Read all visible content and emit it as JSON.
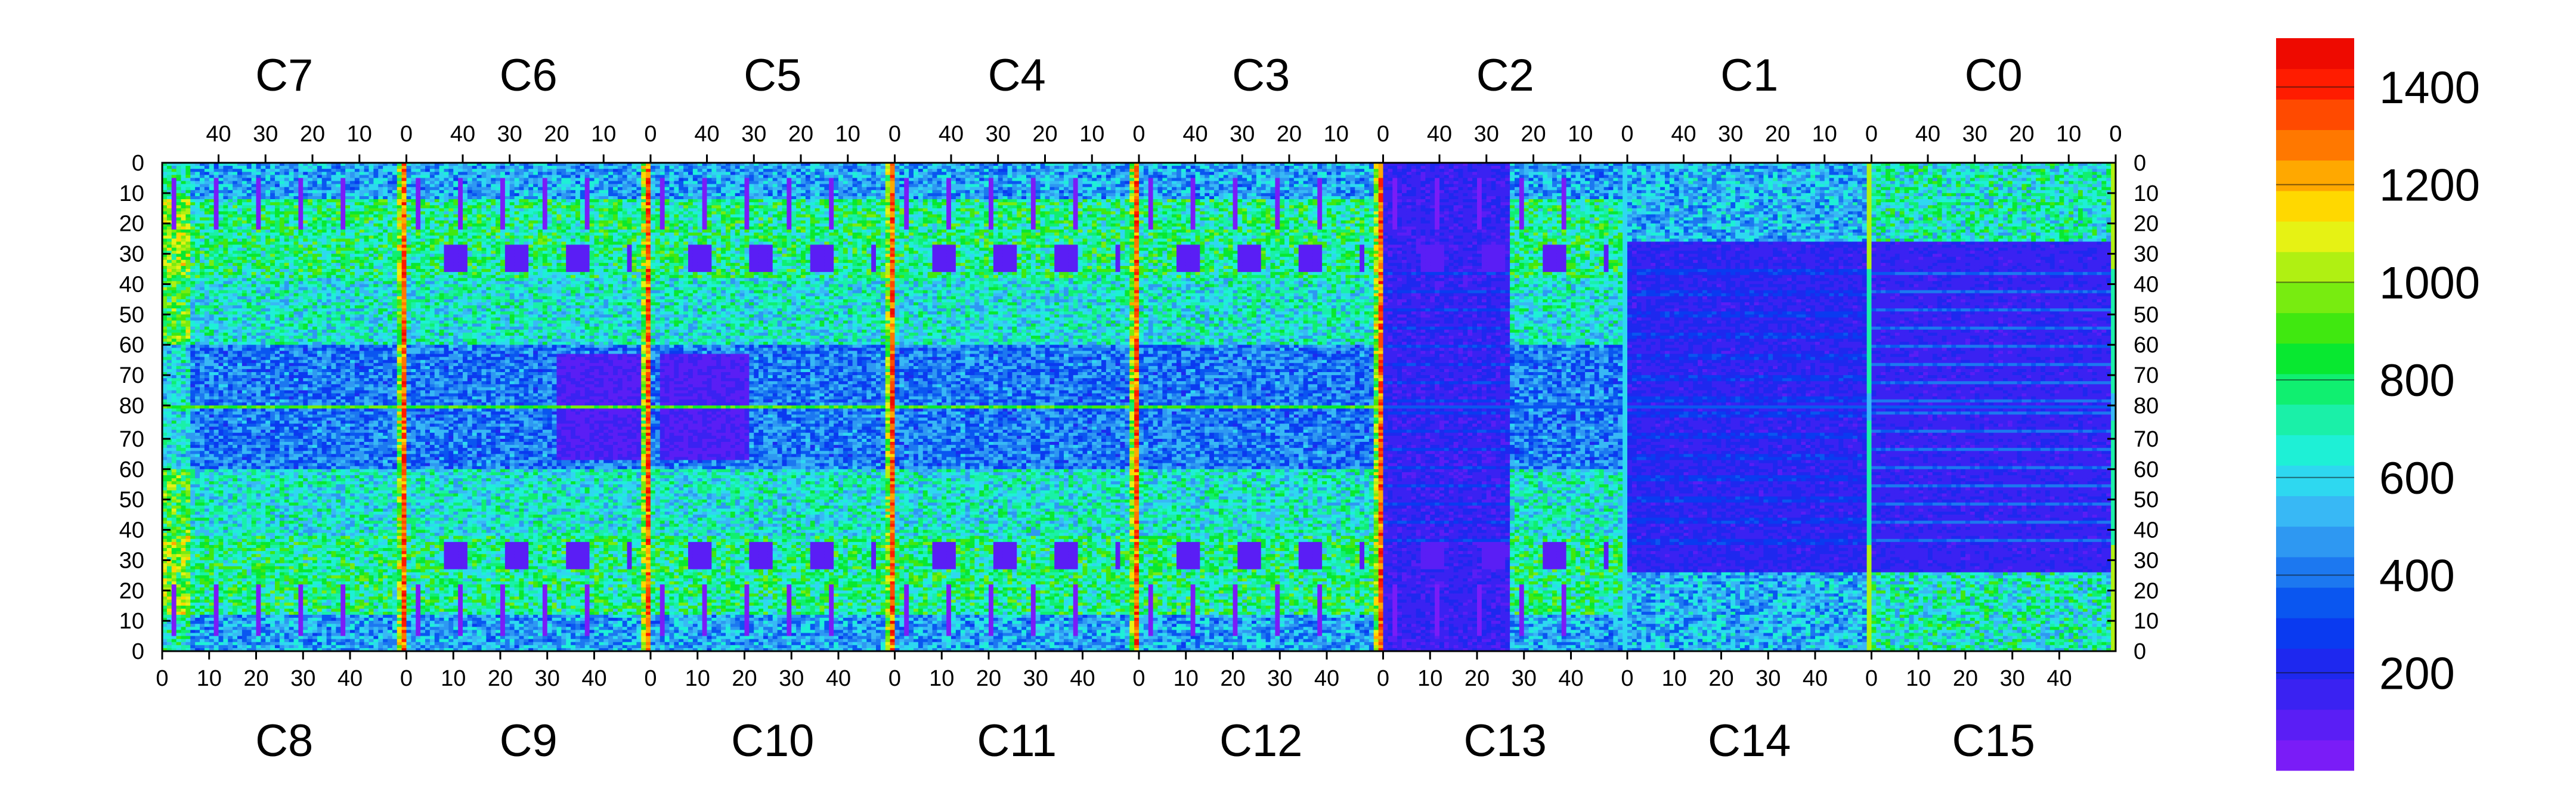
{
  "chart_data": {
    "type": "heatmap",
    "title": "",
    "xlabel": "",
    "ylabel": "",
    "grid": false,
    "chips_top": [
      "C7",
      "C6",
      "C5",
      "C4",
      "C3",
      "C2",
      "C1",
      "C0"
    ],
    "chips_bottom": [
      "C8",
      "C9",
      "C10",
      "C11",
      "C12",
      "C13",
      "C14",
      "C15"
    ],
    "x_ticks_top": [
      "40",
      "30",
      "20",
      "10",
      "0"
    ],
    "x_ticks_bottom": [
      "0",
      "10",
      "20",
      "30",
      "40"
    ],
    "y_ticks_top_half": [
      "0",
      "10",
      "20",
      "30",
      "40",
      "50",
      "60",
      "70",
      "80"
    ],
    "y_ticks_bottom_half": [
      "70",
      "60",
      "50",
      "40",
      "30",
      "20",
      "10",
      "0"
    ],
    "columns_per_chip": 52,
    "rows_per_half": 80,
    "z_range": [
      0,
      1500
    ],
    "colorbar_ticks": [
      "200",
      "400",
      "600",
      "800",
      "1000",
      "1200",
      "1400"
    ],
    "colorbar_tick_values": [
      200,
      400,
      600,
      800,
      1000,
      1200,
      1400
    ],
    "palette": [
      "#7a1cf7",
      "#5a1ef5",
      "#3a22f2",
      "#1e28ef",
      "#0a3af0",
      "#0a56f0",
      "#1c78f0",
      "#2e98f2",
      "#38b8f5",
      "#2ed8f0",
      "#1ef0d6",
      "#1af0a8",
      "#10ef70",
      "#08e830",
      "#40e810",
      "#78ec10",
      "#b0f012",
      "#e6f214",
      "#ffd800",
      "#ffa800",
      "#ff7800",
      "#ff4a00",
      "#ff1c00",
      "#ee0a00"
    ],
    "colors": {
      "low": "#7a1cf7",
      "mid": "#1ef0d6",
      "high": "#ee0a00"
    }
  }
}
